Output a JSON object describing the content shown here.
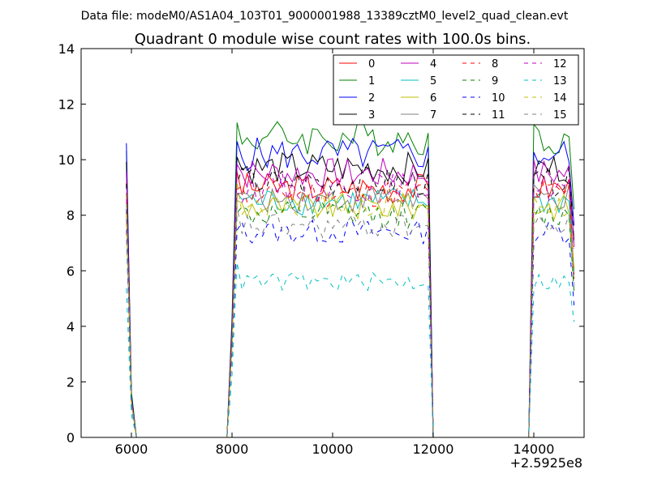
{
  "chart_data": {
    "type": "line",
    "suptitle": "Data file: modeM0/AS1A04_103T01_9000001988_13389cztM0_level2_quad_clean.evt",
    "title": "Quadrant 0 module wise count rates with 100.0s bins.",
    "xlabel": "",
    "ylabel": "",
    "x_offset_label": "+2.5925e8",
    "xlim": [
      5000,
      15000
    ],
    "ylim": [
      0,
      14
    ],
    "x_ticks": [
      6000,
      8000,
      10000,
      12000,
      14000
    ],
    "y_ticks": [
      0,
      2,
      4,
      6,
      8,
      10,
      12,
      14
    ],
    "grid": false,
    "legend_placement": "top-right",
    "legend_columns": 4,
    "segments": [
      {
        "x_start": 5900,
        "x_end": 6100,
        "step": 100,
        "shape": "fall"
      },
      {
        "x_start": 6100,
        "x_end": 7900,
        "step": 100,
        "shape": "zero"
      },
      {
        "x_start": 7900,
        "x_end": 12000,
        "step": 100,
        "shape": "plateau"
      },
      {
        "x_start": 12000,
        "x_end": 13900,
        "step": 100,
        "shape": "zero"
      },
      {
        "x_start": 13900,
        "x_end": 14800,
        "step": 100,
        "shape": "plateau_end"
      }
    ],
    "series": [
      {
        "name": "0",
        "color": "#ff0000",
        "dash": "solid",
        "level": 9.0
      },
      {
        "name": "1",
        "color": "#008000",
        "dash": "solid",
        "level": 10.8
      },
      {
        "name": "2",
        "color": "#0000ff",
        "dash": "solid",
        "level": 10.2
      },
      {
        "name": "3",
        "color": "#000000",
        "dash": "solid",
        "level": 9.7
      },
      {
        "name": "4",
        "color": "#bf00bf",
        "dash": "solid",
        "level": 9.5
      },
      {
        "name": "5",
        "color": "#00bfbf",
        "dash": "solid",
        "level": 8.5
      },
      {
        "name": "6",
        "color": "#bfbf00",
        "dash": "solid",
        "level": 8.3
      },
      {
        "name": "7",
        "color": "#808080",
        "dash": "solid",
        "level": 8.6
      },
      {
        "name": "8",
        "color": "#ff0000",
        "dash": "dashed",
        "level": 8.8
      },
      {
        "name": "9",
        "color": "#008000",
        "dash": "dashed",
        "level": 8.0
      },
      {
        "name": "10",
        "color": "#0000ff",
        "dash": "dashed",
        "level": 7.4
      },
      {
        "name": "11",
        "color": "#000000",
        "dash": "dashed",
        "level": 9.2
      },
      {
        "name": "12",
        "color": "#bf00bf",
        "dash": "dashed",
        "level": 9.0
      },
      {
        "name": "13",
        "color": "#00bfbf",
        "dash": "dashed",
        "level": 5.6
      },
      {
        "name": "14",
        "color": "#bfbf00",
        "dash": "dashed",
        "level": 8.4
      },
      {
        "name": "15",
        "color": "#808080",
        "dash": "dashed",
        "level": 7.6
      }
    ]
  }
}
